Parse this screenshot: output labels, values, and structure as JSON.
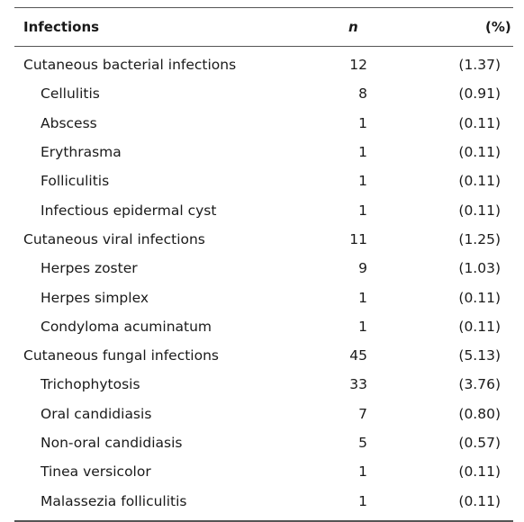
{
  "table": {
    "headers": {
      "name": "Infections",
      "n": "n",
      "pct": "(%)"
    },
    "rows": [
      {
        "name": "Cutaneous bacterial infections",
        "n": "12",
        "pct": "(1.37)",
        "level": "category"
      },
      {
        "name": "Cellulitis",
        "n": "8",
        "pct": "(0.91)",
        "level": "sub"
      },
      {
        "name": "Abscess",
        "n": "1",
        "pct": "(0.11)",
        "level": "sub"
      },
      {
        "name": "Erythrasma",
        "n": "1",
        "pct": "(0.11)",
        "level": "sub"
      },
      {
        "name": "Folliculitis",
        "n": "1",
        "pct": "(0.11)",
        "level": "sub"
      },
      {
        "name": "Infectious epidermal cyst",
        "n": "1",
        "pct": "(0.11)",
        "level": "sub"
      },
      {
        "name": "Cutaneous viral infections",
        "n": "11",
        "pct": "(1.25)",
        "level": "category"
      },
      {
        "name": "Herpes zoster",
        "n": "9",
        "pct": "(1.03)",
        "level": "sub"
      },
      {
        "name": "Herpes simplex",
        "n": "1",
        "pct": "(0.11)",
        "level": "sub"
      },
      {
        "name": "Condyloma acuminatum",
        "n": "1",
        "pct": "(0.11)",
        "level": "sub"
      },
      {
        "name": "Cutaneous fungal infections",
        "n": "45",
        "pct": "(5.13)",
        "level": "category"
      },
      {
        "name": "Trichophytosis",
        "n": "33",
        "pct": "(3.76)",
        "level": "sub"
      },
      {
        "name": "Oral candidiasis",
        "n": "7",
        "pct": "(0.80)",
        "level": "sub"
      },
      {
        "name": "Non-oral candidiasis",
        "n": "5",
        "pct": "(0.57)",
        "level": "sub"
      },
      {
        "name": "Tinea versicolor",
        "n": "1",
        "pct": "(0.11)",
        "level": "sub"
      },
      {
        "name": "Malassezia folliculitis",
        "n": "1",
        "pct": "(0.11)",
        "level": "sub"
      }
    ]
  }
}
